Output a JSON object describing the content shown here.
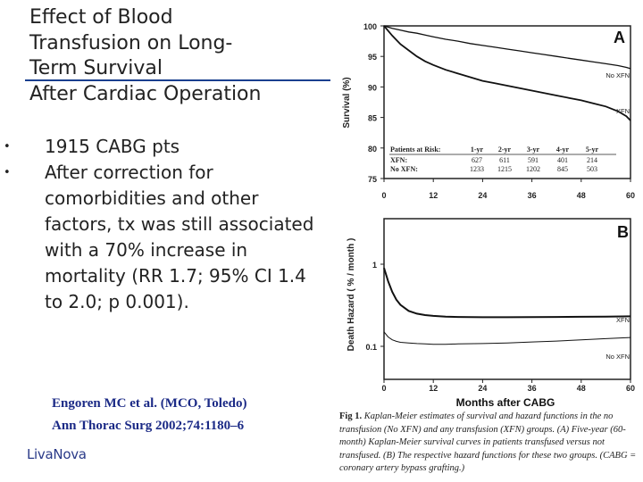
{
  "slide": {
    "title_lines": [
      "Effect of Blood",
      "Transfusion on Long-",
      "Term Survival",
      "After Cardiac Operation"
    ],
    "bullets": [
      "1915 CABG pts",
      "After correction for comorbidities and other factors, tx was still associated with a 70% increase in mortality (RR  1.7; 95% CI  1.4 to 2.0; p  0.001)."
    ],
    "reference": [
      "Engoren MC et al. (MCO, Toledo)",
      "Ann Thorac Surg 2002;74:1180–6"
    ],
    "logo": "LivaNova",
    "caption_label": "Fig 1.",
    "caption": "Kaplan-Meier estimates of survival and hazard functions in the no transfusion (No XFN) and any transfusion (XFN) groups. (A) Five-year (60-month) Kaplan-Meier survival curves in patients transfused versus not transfused. (B) The respective hazard functions for these two groups. (CABG = coronary artery bypass grafting.)"
  },
  "chart_data": [
    {
      "type": "line",
      "panel": "A",
      "title": "",
      "ylabel": "Survival (%)",
      "xlabel": "",
      "xlim": [
        0,
        60
      ],
      "ylim": [
        75,
        100
      ],
      "xticks": [
        "0",
        "12",
        "24",
        "36",
        "48",
        "60"
      ],
      "yticks": [
        "75",
        "80",
        "85",
        "90",
        "95",
        "100"
      ],
      "x": [
        0,
        2,
        4,
        6,
        8,
        10,
        12,
        15,
        18,
        21,
        24,
        27,
        30,
        33,
        36,
        39,
        42,
        45,
        48,
        51,
        54,
        57,
        59,
        60
      ],
      "series": [
        {
          "name": "No XFN",
          "values": [
            100,
            99.6,
            99.3,
            99,
            98.8,
            98.5,
            98.2,
            97.8,
            97.5,
            97.1,
            96.8,
            96.5,
            96.2,
            95.9,
            95.6,
            95.3,
            95,
            94.7,
            94.4,
            94.1,
            93.8,
            93.5,
            93.2,
            93
          ]
        },
        {
          "name": "XFN",
          "values": [
            100,
            98.4,
            97,
            96,
            95,
            94.2,
            93.6,
            92.8,
            92.2,
            91.6,
            91,
            90.6,
            90.2,
            89.8,
            89.4,
            89,
            88.6,
            88.2,
            87.8,
            87.3,
            86.8,
            86,
            85.2,
            84.5
          ]
        }
      ],
      "risk_table": {
        "header": "Patients at Risk",
        "columns": [
          "1-yr",
          "2-yr",
          "3-yr",
          "4-yr",
          "5-yr"
        ],
        "rows": [
          {
            "label": "XFN:",
            "values": [
              "627",
              "611",
              "591",
              "401",
              "214"
            ]
          },
          {
            "label": "No XFN:",
            "values": [
              "1233",
              "1215",
              "1202",
              "845",
              "503"
            ]
          }
        ]
      }
    },
    {
      "type": "line",
      "panel": "B",
      "title": "",
      "ylabel": "Death Hazard ( % / month )",
      "xlabel": "Months after CABG",
      "xlim": [
        0,
        60
      ],
      "yscale": "log",
      "yticks": [
        "1",
        "0.1"
      ],
      "xticks": [
        "0",
        "12",
        "24",
        "36",
        "48",
        "60"
      ],
      "x": [
        0,
        1,
        2,
        3,
        4,
        6,
        8,
        10,
        12,
        15,
        18,
        24,
        30,
        36,
        42,
        48,
        54,
        60
      ],
      "series": [
        {
          "name": "XFN",
          "values": [
            0.9,
            0.62,
            0.46,
            0.37,
            0.32,
            0.27,
            0.25,
            0.24,
            0.235,
            0.23,
            0.228,
            0.226,
            0.226,
            0.227,
            0.228,
            0.229,
            0.23,
            0.232
          ]
        },
        {
          "name": "No XFN",
          "values": [
            0.15,
            0.13,
            0.12,
            0.115,
            0.112,
            0.11,
            0.108,
            0.107,
            0.106,
            0.106,
            0.107,
            0.108,
            0.11,
            0.113,
            0.116,
            0.12,
            0.124,
            0.128
          ]
        }
      ]
    }
  ]
}
